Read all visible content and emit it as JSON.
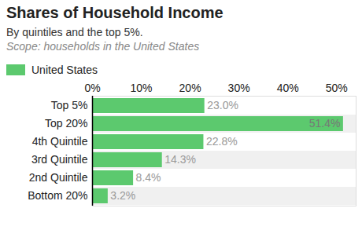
{
  "chart_data": {
    "type": "bar",
    "title": "Shares of Household Income",
    "subtitle": [
      "By quintiles and the top 5%.",
      "Scope: households in the United States"
    ],
    "orientation": "horizontal",
    "categories": [
      "Top 5%",
      "Top 20%",
      "4th Quintile",
      "3rd Quintile",
      "2nd Quintile",
      "Bottom 20%"
    ],
    "series": [
      {
        "name": "United States",
        "color": "#5cc96e",
        "values": [
          23.0,
          51.4,
          22.8,
          14.3,
          8.4,
          3.2
        ],
        "value_labels": [
          "23.0%",
          "51.4%",
          "22.8%",
          "14.3%",
          "8.4%",
          "3.2%"
        ]
      }
    ],
    "xlim": [
      0,
      54
    ],
    "xticks": [
      {
        "value": 0,
        "label": "0%"
      },
      {
        "value": 10,
        "label": "10%"
      },
      {
        "value": 20,
        "label": "20%"
      },
      {
        "value": 30,
        "label": "30%"
      },
      {
        "value": 40,
        "label": "40%"
      },
      {
        "value": 50,
        "label": "50%"
      }
    ],
    "grid": false,
    "legend": "top-left",
    "data_labels": true
  }
}
